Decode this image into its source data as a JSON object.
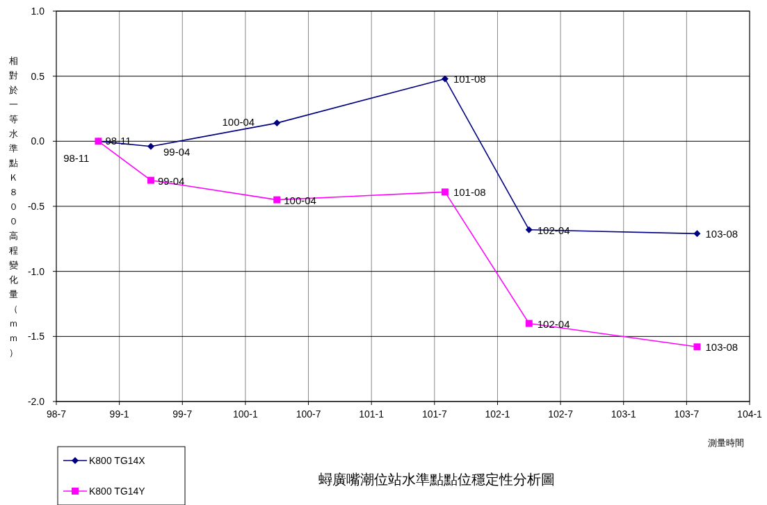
{
  "chart_data": {
    "type": "line",
    "title": "蟳廣嘴潮位站水準點點位穩定性分析圖",
    "xlabel": "測量時間",
    "ylabel": "相對於一等水準點Ｋ８００高程變化量（ｍｍ）",
    "x": [
      "0098-11",
      "0099-04",
      "0100-04",
      "0101-08",
      "0102-04",
      "0103-08"
    ],
    "series": [
      {
        "name": "K800 TG14X",
        "color": "#000080",
        "marker": "diamond",
        "values": [
          0.0,
          -0.04,
          0.14,
          0.48,
          -0.68,
          -0.71
        ]
      },
      {
        "name": "K800 TG14Y",
        "color": "#ff00ff",
        "marker": "square",
        "values": [
          0.0,
          -0.3,
          -0.45,
          -0.39,
          -1.4,
          -1.58
        ]
      }
    ],
    "xlim": [
      "0098-07",
      "0104-01"
    ],
    "xticks": [
      {
        "value": "0098-07",
        "label": "98-7"
      },
      {
        "value": "0099-01",
        "label": "99-1"
      },
      {
        "value": "0099-07",
        "label": "99-7"
      },
      {
        "value": "0100-01",
        "label": "100-1"
      },
      {
        "value": "0100-07",
        "label": "100-7"
      },
      {
        "value": "0101-01",
        "label": "101-1"
      },
      {
        "value": "0101-07",
        "label": "101-7"
      },
      {
        "value": "0102-01",
        "label": "102-1"
      },
      {
        "value": "0102-07",
        "label": "102-7"
      },
      {
        "value": "0103-01",
        "label": "103-1"
      },
      {
        "value": "0103-07",
        "label": "103-7"
      },
      {
        "value": "0104-01",
        "label": "104-1"
      }
    ],
    "ylim": [
      -2.0,
      1.0
    ],
    "yticks": [
      {
        "value": 1.0,
        "label": "1.0"
      },
      {
        "value": 0.5,
        "label": "0.5"
      },
      {
        "value": 0.0,
        "label": "0.0"
      },
      {
        "value": -0.5,
        "label": "-0.5"
      },
      {
        "value": -1.0,
        "label": "-1.0"
      },
      {
        "value": -1.5,
        "label": "-1.5"
      },
      {
        "value": -2.0,
        "label": "-2.0"
      }
    ],
    "grid": true,
    "legend": "bottom left",
    "annotations": [
      {
        "text": "98-11",
        "x": "0098-11",
        "y": 0.0
      },
      {
        "text": "99-04",
        "x": "0099-04",
        "y": -0.04
      },
      {
        "text": "100-04",
        "x": "0100-04",
        "y": 0.14
      },
      {
        "text": "101-08",
        "x": "0101-08",
        "y": 0.48
      },
      {
        "text": "102-04",
        "x": "0102-04",
        "y": -0.68
      },
      {
        "text": "103-08",
        "x": "0103-08",
        "y": -0.71
      },
      {
        "text": "98-11",
        "x": "0098-11",
        "y": 0.0
      },
      {
        "text": "99-04",
        "x": "0099-04",
        "y": -0.3
      },
      {
        "text": "100-04",
        "x": "0100-04",
        "y": -0.45
      },
      {
        "text": "101-08",
        "x": "0101-08",
        "y": -0.39
      },
      {
        "text": "102-04",
        "x": "0102-04",
        "y": -1.4
      },
      {
        "text": "103-08",
        "x": "0103-08",
        "y": -1.58
      }
    ]
  }
}
